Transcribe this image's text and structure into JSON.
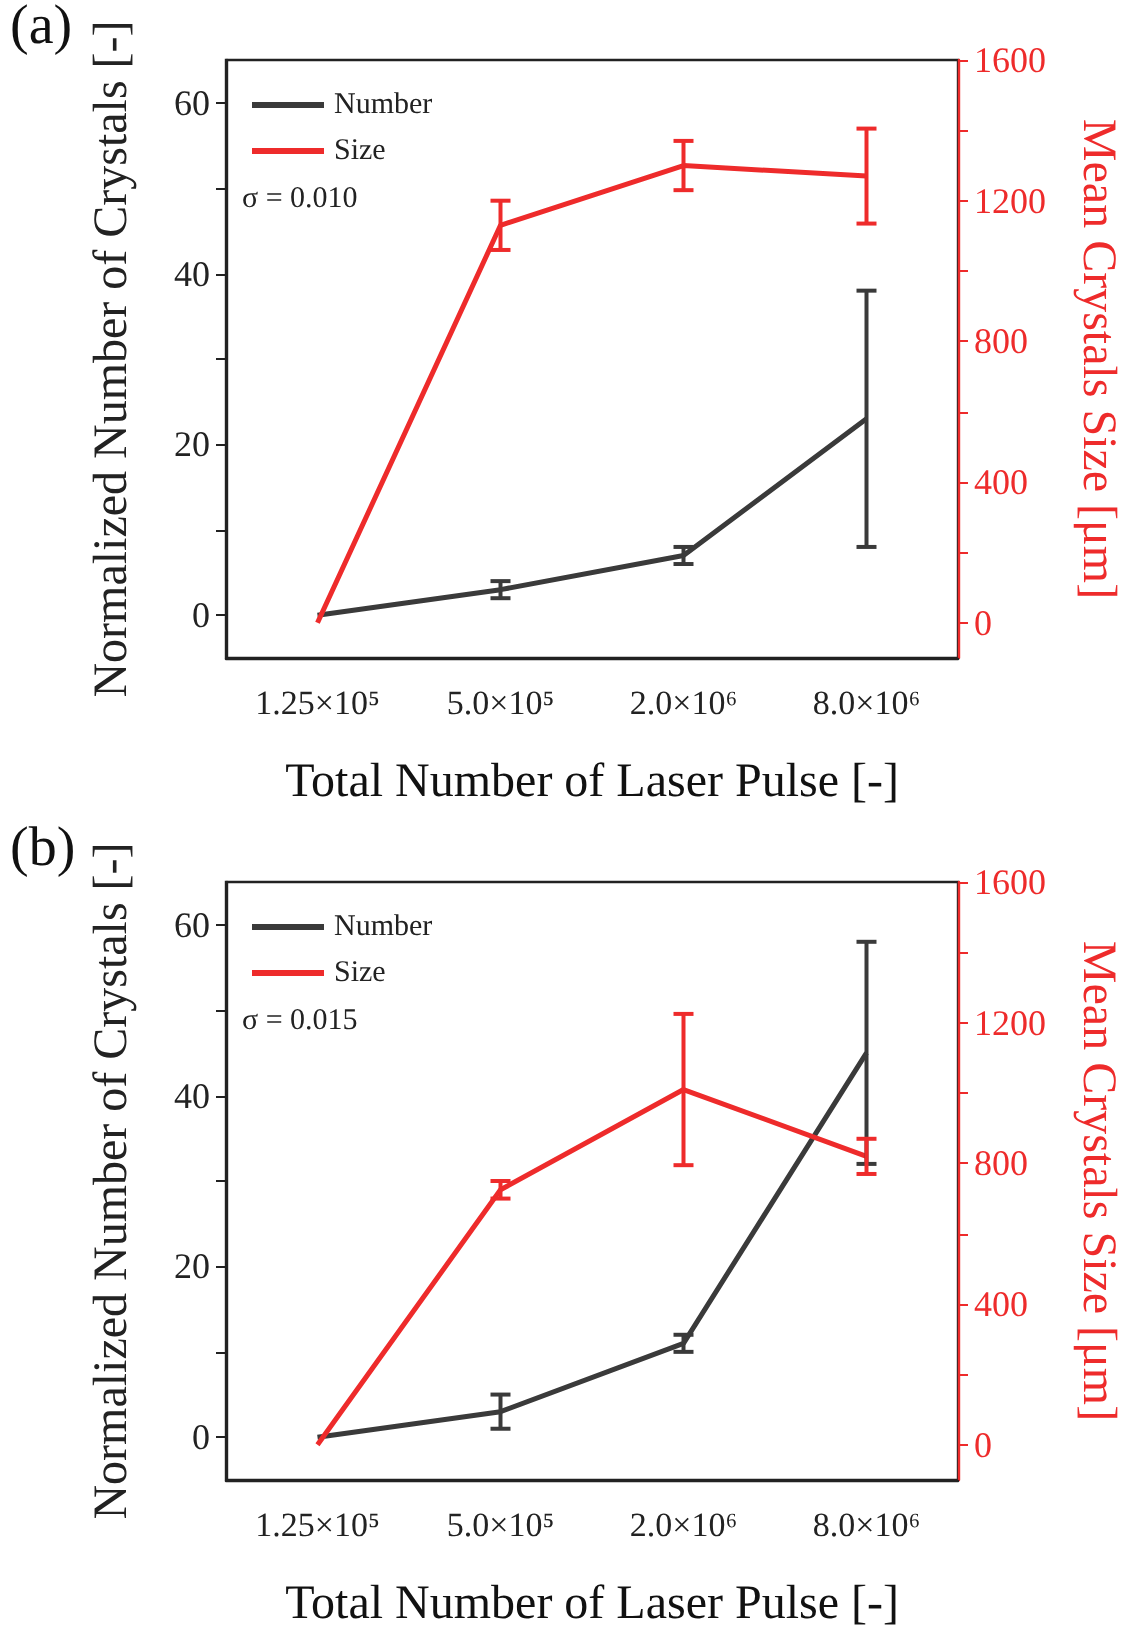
{
  "chart_data": [
    {
      "type": "line",
      "title": "(a)",
      "xlabel": "Total Number of Laser Pulse [-]",
      "ylabel": "Normalized Number of Crystals [-]",
      "y2label": "Mean Crystals Size [μm]",
      "categories": [
        "1.25×10⁵",
        "5.0×10⁵",
        "2.0×10⁶",
        "8.0×10⁶"
      ],
      "series": [
        {
          "name": "Number",
          "color": "#3a3a3a",
          "values": [
            0,
            3,
            7,
            23
          ],
          "errors": [
            null,
            1,
            1,
            15
          ]
        },
        {
          "name": "Size",
          "color": "#ee2b2b",
          "axis": "y2",
          "values": [
            0,
            1130,
            1300,
            1270
          ],
          "errors": [
            null,
            70,
            70,
            135
          ]
        }
      ],
      "ylim": [
        -5,
        65
      ],
      "yticks": [
        0,
        {
          "value": 10,
          "label": null
        },
        20,
        {
          "value": 30,
          "label": null
        },
        40,
        {
          "value": 50,
          "label": null
        },
        60
      ],
      "y2lim": [
        -100,
        1600
      ],
      "y2ticks": [
        0,
        {
          "value": 200,
          "label": null
        },
        400,
        {
          "value": 600,
          "label": null
        },
        800,
        {
          "value": 1000,
          "label": null
        },
        1200,
        {
          "value": 1400,
          "label": null
        },
        1600
      ],
      "annotations": [
        "σ = 0.010"
      ],
      "legend": "top left",
      "grid": false,
      "marker": "none"
    },
    {
      "type": "line",
      "title": "(b)",
      "xlabel": "Total Number of Laser Pulse [-]",
      "ylabel": "Normalized Number of Crystals [-]",
      "y2label": "Mean Crystals Size [μm]",
      "categories": [
        "1.25×10⁵",
        "5.0×10⁵",
        "2.0×10⁶",
        "8.0×10⁶"
      ],
      "series": [
        {
          "name": "Number",
          "color": "#3a3a3a",
          "values": [
            0,
            3,
            11,
            45
          ],
          "errors": [
            null,
            2,
            1,
            13
          ]
        },
        {
          "name": "Size",
          "color": "#ee2b2b",
          "axis": "y2",
          "values": [
            0,
            725,
            1010,
            820
          ],
          "errors": [
            null,
            25,
            215,
            50
          ]
        }
      ],
      "ylim": [
        -5,
        65
      ],
      "yticks": [
        0,
        {
          "value": 10,
          "label": null
        },
        20,
        {
          "value": 30,
          "label": null
        },
        40,
        {
          "value": 50,
          "label": null
        },
        60
      ],
      "y2lim": [
        -100,
        1600
      ],
      "y2ticks": [
        0,
        {
          "value": 200,
          "label": null
        },
        400,
        {
          "value": 600,
          "label": null
        },
        800,
        {
          "value": 1000,
          "label": null
        },
        1200,
        {
          "value": 1400,
          "label": null
        },
        1600
      ],
      "annotations": [
        "σ = 0.015"
      ],
      "legend": "top left",
      "grid": false,
      "marker": "none"
    }
  ]
}
